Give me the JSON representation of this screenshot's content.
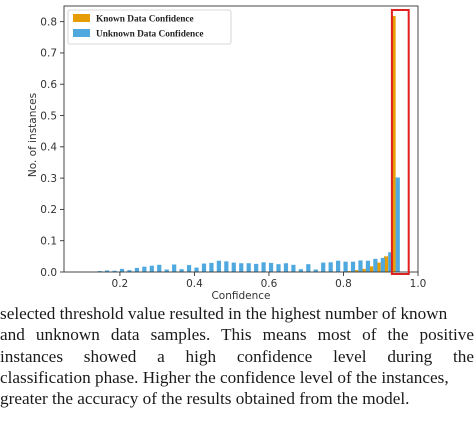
{
  "chart_data": {
    "type": "bar",
    "xlabel": "Confidence",
    "ylabel": "No. of instances",
    "xlim": [
      0.05,
      1.0
    ],
    "ylim": [
      0,
      0.85
    ],
    "xticks": [
      "0.2",
      "0.4",
      "0.6",
      "0.8",
      "1.0"
    ],
    "xtick_values": [
      0.2,
      0.4,
      0.6,
      0.8,
      1.0
    ],
    "yticks": [
      "0.0",
      "0.1",
      "0.2",
      "0.3",
      "0.4",
      "0.5",
      "0.6",
      "0.7",
      "0.8"
    ],
    "ytick_values": [
      0.0,
      0.1,
      0.2,
      0.3,
      0.4,
      0.5,
      0.6,
      0.7,
      0.8
    ],
    "legend_position": "top-left",
    "highlight": {
      "x_range": [
        0.93,
        0.975
      ],
      "color": "#e0201e"
    },
    "series": [
      {
        "name": "Known Data Confidence",
        "color": "#e59c05",
        "x": [
          0.82,
          0.84,
          0.86,
          0.88,
          0.9,
          0.92,
          0.94
        ],
        "values": [
          0.003,
          0.006,
          0.01,
          0.018,
          0.03,
          0.05,
          0.818
        ]
      },
      {
        "name": "Unknown Data Confidence",
        "color": "#4fa8de",
        "x": [
          0.14,
          0.16,
          0.18,
          0.2,
          0.22,
          0.24,
          0.26,
          0.28,
          0.3,
          0.32,
          0.34,
          0.36,
          0.38,
          0.4,
          0.42,
          0.44,
          0.46,
          0.48,
          0.5,
          0.52,
          0.54,
          0.56,
          0.58,
          0.6,
          0.62,
          0.64,
          0.66,
          0.68,
          0.7,
          0.72,
          0.74,
          0.76,
          0.78,
          0.8,
          0.82,
          0.84,
          0.86,
          0.88,
          0.9,
          0.92,
          0.94
        ],
        "values": [
          0.003,
          0.005,
          0.004,
          0.01,
          0.006,
          0.013,
          0.017,
          0.02,
          0.023,
          0.008,
          0.024,
          0.009,
          0.022,
          0.014,
          0.027,
          0.029,
          0.036,
          0.034,
          0.03,
          0.028,
          0.028,
          0.026,
          0.031,
          0.029,
          0.025,
          0.028,
          0.023,
          0.009,
          0.025,
          0.008,
          0.03,
          0.031,
          0.036,
          0.033,
          0.033,
          0.037,
          0.036,
          0.042,
          0.045,
          0.063,
          0.302
        ]
      }
    ]
  },
  "caption": {
    "lines": [
      "selected threshold value resulted in the highest number of known",
      "and unknown data samples. This means most of the positive",
      "instances showed a high confidence level during the",
      "classification phase. Higher the confidence level of the instances,",
      "greater the accuracy of the results obtained from the model."
    ]
  }
}
